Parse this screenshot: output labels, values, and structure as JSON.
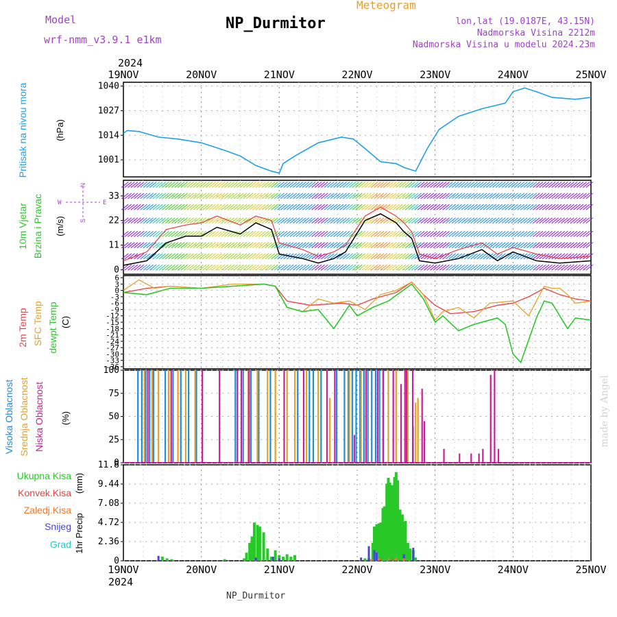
{
  "header": {
    "model_label": "Model",
    "model_name": "wrf-nmm_v3.9.1 e1km",
    "title": "NP_Durmitor",
    "meteogram_label": "Meteogram",
    "coords": "lon,lat (19.0187E, 43.15N)",
    "elevation": "Nadmorska Visina 2212m",
    "model_elevation": "Nadmorska Visina u modelu 2024.23m",
    "credit": "made by Angel"
  },
  "footer": {
    "station": "NP_Durmitor"
  },
  "colors": {
    "pressure": "#1ea0e6",
    "temp2m": "#f03c3c",
    "sfc_temp": "#e6a028",
    "dewpoint": "#28c828",
    "high_cloud": "#1e8cdc",
    "mid_cloud": "#e6a028",
    "low_cloud": "#c81e96",
    "total_precip": "#28c828",
    "convective": "#f03c3c",
    "freezing": "#f07828",
    "snow": "#4646dc",
    "hail": "#28c8c8",
    "wind_legend": "#a040c8"
  },
  "time_axis": {
    "year": "2024",
    "ticks": [
      "19NOV",
      "20NOV",
      "21NOV",
      "22NOV",
      "23NOV",
      "24NOV",
      "25NOV"
    ]
  },
  "chart_data": [
    {
      "type": "line",
      "name": "pressure",
      "ylabel": "Pritisak na nivou mora",
      "unit": "(hPa)",
      "yticks": [
        1001,
        1014,
        1027,
        1040
      ],
      "ylim": [
        992,
        1042
      ],
      "x_range_days": [
        "19NOV",
        "25NOV"
      ],
      "series": [
        {
          "name": "Pritisak na nivou mora",
          "x_days": [
            0,
            0.05,
            0.2,
            0.45,
            0.7,
            1.0,
            1.3,
            1.5,
            1.7,
            1.9,
            2.0,
            2.05,
            2.2,
            2.5,
            2.8,
            2.95,
            3.1,
            3.3,
            3.5,
            3.6,
            3.75,
            3.8,
            3.9,
            4.05,
            4.3,
            4.6,
            4.9,
            5.0,
            5.15,
            5.3,
            5.5,
            5.8,
            6.0
          ],
          "values": [
            1015,
            1016.5,
            1016,
            1013,
            1012,
            1010,
            1006,
            1003,
            998,
            995,
            994,
            999,
            1003,
            1010,
            1013,
            1012,
            1007,
            1000,
            999,
            997,
            995,
            999,
            1007,
            1017,
            1024,
            1028,
            1031,
            1037,
            1039,
            1037,
            1034,
            1033,
            1034
          ]
        }
      ]
    },
    {
      "type": "line",
      "name": "wind",
      "ylabel": "10m Vjetar Brzina i Pravac",
      "unit": "(m/s)",
      "yticks": [
        0,
        11,
        22,
        33
      ],
      "ylim": [
        -2,
        40
      ],
      "compass": {
        "n": "N",
        "s": "S",
        "e": "E",
        "w": "W"
      },
      "series": [
        {
          "name": "Brzina",
          "x_days": [
            0,
            0.3,
            0.55,
            0.8,
            1.0,
            1.2,
            1.5,
            1.7,
            1.9,
            2.0,
            2.3,
            2.5,
            2.7,
            2.85,
            3.1,
            3.3,
            3.5,
            3.6,
            3.7,
            3.8,
            4.0,
            4.3,
            4.6,
            4.8,
            5.0,
            5.3,
            5.6,
            6.0
          ],
          "values": [
            2,
            4,
            12,
            15,
            15,
            19,
            16,
            21,
            18,
            7,
            5,
            3,
            5,
            8,
            22,
            25,
            21,
            17,
            14,
            4,
            3,
            5,
            9,
            4,
            8,
            4,
            3,
            4
          ]
        },
        {
          "name": "Udari",
          "x_days": [
            0,
            0.3,
            0.55,
            0.8,
            1.0,
            1.2,
            1.5,
            1.7,
            1.9,
            2.0,
            2.3,
            2.5,
            2.7,
            2.85,
            3.1,
            3.3,
            3.5,
            3.6,
            3.7,
            3.8,
            4.0,
            4.3,
            4.6,
            4.8,
            5.0,
            5.3,
            5.6,
            6.0
          ],
          "values": [
            4,
            8,
            18,
            20,
            21,
            24,
            20,
            24,
            22,
            12,
            9,
            6,
            8,
            11,
            24,
            28,
            24,
            21,
            17,
            7,
            5,
            9,
            12,
            7,
            10,
            7,
            5,
            6
          ]
        }
      ]
    },
    {
      "type": "line",
      "name": "temperature",
      "ylabel": [
        "2m Temp",
        "SFC Temp",
        "dewpt Temp"
      ],
      "unit": "(C)",
      "yticks": [
        6,
        3,
        0,
        -3,
        -6,
        -9,
        -12,
        -15,
        -18,
        -21,
        -24,
        -27,
        -30,
        -33,
        -36
      ],
      "ylim": [
        -37,
        7
      ],
      "series": [
        {
          "name": "2m Temp",
          "x_days": [
            0,
            0.3,
            0.6,
            1.0,
            1.4,
            1.8,
            1.95,
            2.1,
            2.4,
            2.8,
            3.0,
            3.2,
            3.5,
            3.7,
            3.85,
            4.0,
            4.2,
            4.5,
            4.8,
            5.0,
            5.2,
            5.4,
            5.6,
            5.8,
            6.0
          ],
          "values": [
            -1,
            1,
            2,
            1,
            2,
            3,
            2,
            -5,
            -7,
            -6,
            -7,
            -4,
            -1,
            4,
            -2,
            -7,
            -11,
            -10,
            -7,
            -6,
            -3,
            1,
            -2,
            -4,
            -5
          ]
        },
        {
          "name": "SFC Temp",
          "x_days": [
            0,
            0.2,
            0.4,
            0.6,
            1.0,
            1.4,
            1.8,
            1.95,
            2.1,
            2.3,
            2.5,
            2.7,
            2.9,
            3.1,
            3.3,
            3.5,
            3.7,
            3.85,
            4.0,
            4.1,
            4.3,
            4.5,
            4.7,
            5.0,
            5.2,
            5.4,
            5.5,
            5.6,
            5.7,
            5.8,
            6.0
          ],
          "values": [
            0,
            5,
            1,
            2,
            1,
            3,
            3,
            2,
            -8,
            -10,
            -4,
            -6,
            -5,
            -9,
            -2,
            0,
            4,
            -2,
            -14,
            -10,
            -8,
            -13,
            -6,
            -5,
            -12,
            2,
            1,
            1,
            -2,
            -6,
            -5
          ]
        },
        {
          "name": "dewpt Temp",
          "x_days": [
            0,
            0.3,
            0.6,
            1.0,
            1.4,
            1.8,
            1.95,
            2.1,
            2.3,
            2.5,
            2.7,
            2.9,
            3.0,
            3.2,
            3.4,
            3.7,
            3.85,
            4.0,
            4.1,
            4.3,
            4.5,
            4.8,
            4.9,
            5.0,
            5.1,
            5.3,
            5.4,
            5.5,
            5.6,
            5.7,
            5.8,
            6.0
          ],
          "values": [
            -1,
            -2,
            1,
            1,
            2,
            3,
            2,
            -8,
            -10,
            -9,
            -18,
            -7,
            -12,
            -8,
            -5,
            3,
            -4,
            -15,
            -12,
            -19,
            -16,
            -13,
            -16,
            -30,
            -34,
            -13,
            -5,
            -6,
            -12,
            -18,
            -13,
            -14
          ]
        }
      ]
    },
    {
      "type": "bar",
      "name": "cloud_cover",
      "ylabel": [
        "Visoka Oblacnost",
        "Srednja Oblacnost",
        "Niska Oblacnost"
      ],
      "unit": "(%)",
      "yticks": [
        0,
        25,
        50,
        75,
        100
      ],
      "ylim": [
        0,
        100
      ],
      "series": [
        {
          "name": "Visoka Oblacnost",
          "x_days": [
            0.2,
            0.25,
            0.3,
            0.35,
            0.4,
            0.55,
            0.65,
            0.75,
            0.85,
            0.95,
            1.45,
            1.55,
            1.65,
            1.75,
            1.9,
            2.25,
            2.4,
            2.45,
            2.55,
            2.75,
            2.85,
            2.9,
            2.95,
            3.0,
            3.05,
            3.1,
            3.15,
            3.2,
            3.25,
            3.3,
            3.35
          ],
          "values": [
            100,
            100,
            100,
            100,
            100,
            100,
            100,
            100,
            100,
            100,
            100,
            100,
            100,
            100,
            100,
            100,
            100,
            100,
            100,
            100,
            100,
            100,
            100,
            100,
            100,
            100,
            100,
            100,
            100,
            100,
            100
          ]
        },
        {
          "name": "Srednja Oblacnost",
          "x_days": [
            0.27,
            0.37,
            0.45,
            0.58,
            0.7,
            0.8,
            0.92,
            1.6,
            1.72,
            1.85,
            1.95,
            2.1,
            2.2,
            2.35,
            2.5,
            2.65,
            2.9,
            3.05,
            3.4,
            3.5,
            3.65,
            3.72,
            3.75,
            3.78
          ],
          "values": [
            100,
            100,
            100,
            100,
            100,
            100,
            100,
            100,
            100,
            100,
            100,
            100,
            100,
            100,
            100,
            70,
            100,
            100,
            100,
            100,
            100,
            40,
            65,
            70
          ]
        },
        {
          "name": "Niska Oblacnost",
          "x_days": [
            0.3,
            0.6,
            1.0,
            1.22,
            1.45,
            1.5,
            1.6,
            2.05,
            2.3,
            2.6,
            2.7,
            2.95,
            3.1,
            3.25,
            3.32,
            3.45,
            3.55,
            3.6,
            3.62,
            3.7,
            3.82,
            3.85,
            4.1,
            4.3,
            4.45,
            4.55,
            4.6,
            4.7,
            4.75,
            4.8
          ],
          "values": [
            100,
            100,
            100,
            100,
            100,
            100,
            100,
            100,
            100,
            100,
            100,
            30,
            100,
            100,
            100,
            100,
            85,
            100,
            100,
            100,
            80,
            45,
            15,
            10,
            10,
            10,
            15,
            95,
            100,
            15
          ]
        }
      ]
    },
    {
      "type": "bar",
      "name": "precipitation",
      "ylabel": "1hr Precip",
      "unit": "(mm)",
      "legend": [
        "Ukupna Kisa",
        "Konvek.Kisa",
        "Zaledj.Kisa",
        "Snijeg",
        "Grad"
      ],
      "yticks": [
        0,
        2.36,
        4.72,
        7.08,
        9.44,
        11.8
      ],
      "ylim": [
        0,
        11.8
      ],
      "series": [
        {
          "name": "Ukupna Kisa",
          "x_days": [
            0.5,
            0.56,
            0.62,
            1.3,
            1.55,
            1.58,
            1.62,
            1.65,
            1.68,
            1.72,
            1.75,
            1.8,
            1.85,
            1.9,
            1.95,
            2.0,
            2.05,
            2.1,
            2.15,
            2.2,
            3.1,
            3.15,
            3.2,
            3.22,
            3.25,
            3.28,
            3.3,
            3.33,
            3.35,
            3.38,
            3.4,
            3.42,
            3.45,
            3.48,
            3.5,
            3.52,
            3.55,
            3.58,
            3.6,
            3.62,
            3.65,
            3.68,
            3.72,
            3.75
          ],
          "values": [
            0.5,
            0.3,
            0.2,
            0.2,
            0.3,
            1.0,
            2.2,
            3.0,
            4.7,
            4.4,
            4.2,
            3.5,
            1.5,
            0.5,
            1.3,
            0.7,
            0.5,
            0.8,
            0.5,
            0.7,
            0.3,
            0.3,
            2.2,
            4.2,
            4.5,
            4.6,
            4.7,
            6.5,
            6.7,
            9.5,
            10.2,
            9.6,
            9.3,
            10.3,
            10.9,
            9.9,
            6.3,
            5.7,
            4.8,
            4.9,
            2.2,
            1.5,
            1.3,
            0.4
          ]
        },
        {
          "name": "Snijeg",
          "x_days": [
            0.45,
            1.7,
            1.92,
            2.0,
            3.05,
            3.15,
            3.22,
            3.25,
            3.6,
            3.72
          ],
          "values": [
            0.6,
            0.4,
            0.5,
            0.3,
            0.4,
            1.8,
            1.3,
            1.0,
            0.8,
            1.6
          ]
        },
        {
          "name": "Zaledj.Kisa",
          "x_days": [
            3.18,
            3.28,
            3.4,
            3.5,
            3.6
          ],
          "values": [
            0.2,
            0.3,
            0.3,
            0.4,
            0.3
          ]
        },
        {
          "name": "Konvek.Kisa",
          "x_days": [
            3.3,
            3.45,
            3.55
          ],
          "values": [
            0.15,
            0.2,
            0.1
          ]
        },
        {
          "name": "Grad",
          "x_days": [
            3.2,
            3.35
          ],
          "values": [
            0.1,
            0.1
          ]
        }
      ]
    }
  ]
}
